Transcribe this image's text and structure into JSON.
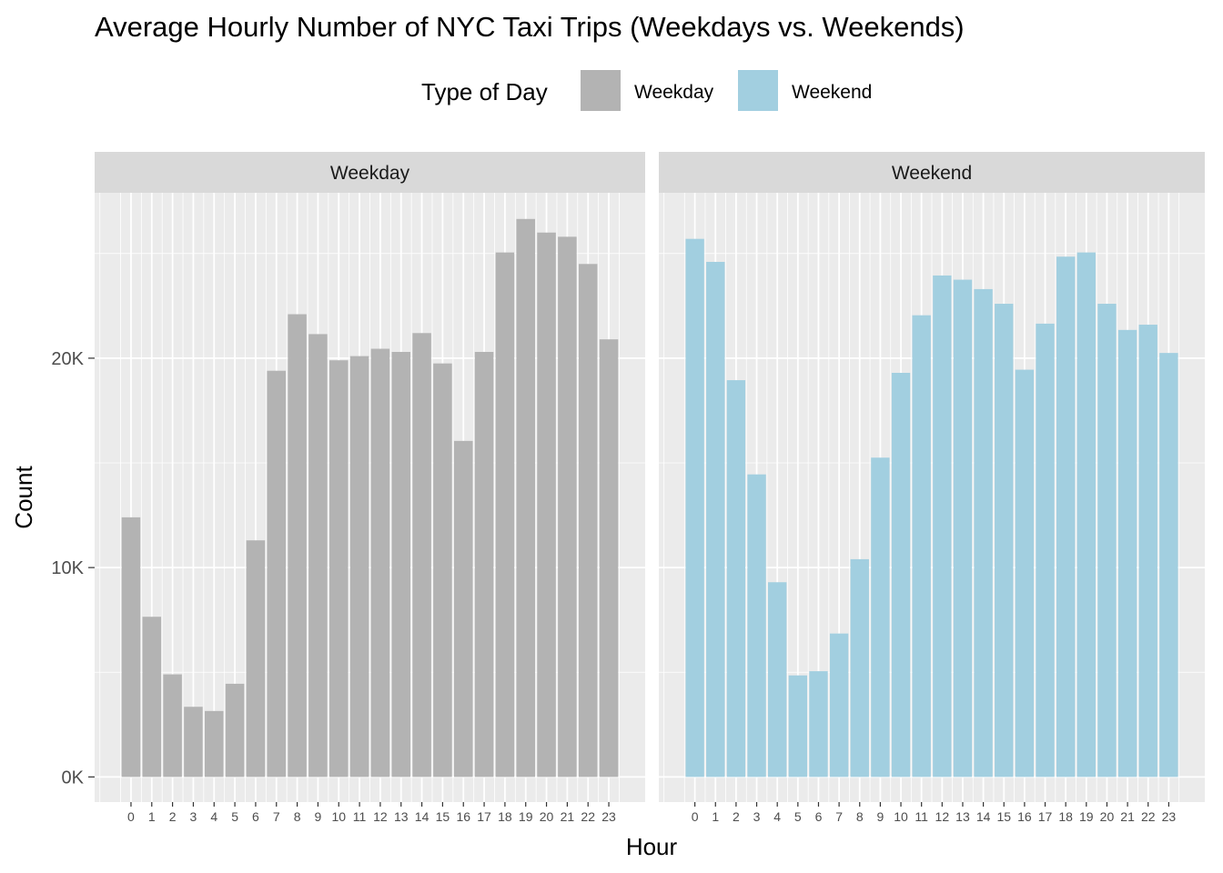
{
  "chart_data": {
    "type": "bar",
    "title": "Average Hourly Number of NYC Taxi Trips (Weekdays vs. Weekends)",
    "xlabel": "Hour",
    "ylabel": "Count",
    "ylim": [
      -1200,
      27900
    ],
    "yticks": [
      0,
      10000,
      20000
    ],
    "ytick_labels": [
      "0K",
      "10K",
      "20K"
    ],
    "grid": true,
    "legend": {
      "title": "Type of Day",
      "placement": "top",
      "entries": [
        {
          "label": "Weekday",
          "color": "#b3b3b3"
        },
        {
          "label": "Weekend",
          "color": "#a2cfe0"
        }
      ]
    },
    "categories": [
      "0",
      "1",
      "2",
      "3",
      "4",
      "5",
      "6",
      "7",
      "8",
      "9",
      "10",
      "11",
      "12",
      "13",
      "14",
      "15",
      "16",
      "17",
      "18",
      "19",
      "20",
      "21",
      "22",
      "23"
    ],
    "series": [
      {
        "name": "Weekday",
        "color": "#b3b3b3",
        "values": [
          12400,
          7650,
          4900,
          3350,
          3150,
          4450,
          11300,
          19400,
          22100,
          21150,
          19900,
          20100,
          20450,
          20300,
          21200,
          19750,
          16050,
          20300,
          25050,
          26650,
          26000,
          25800,
          24500,
          20900
        ]
      },
      {
        "name": "Weekend",
        "color": "#a2cfe0",
        "values": [
          25700,
          24600,
          18950,
          14450,
          9300,
          4850,
          5050,
          6850,
          10400,
          15250,
          19300,
          22050,
          23950,
          23750,
          23300,
          22600,
          19450,
          21650,
          24850,
          25050,
          22600,
          21350,
          21600,
          20250
        ]
      }
    ]
  },
  "colors": {
    "panel_bg": "#ebebeb",
    "grid_major": "#ffffff",
    "strip_bg": "#d9d9d9"
  }
}
